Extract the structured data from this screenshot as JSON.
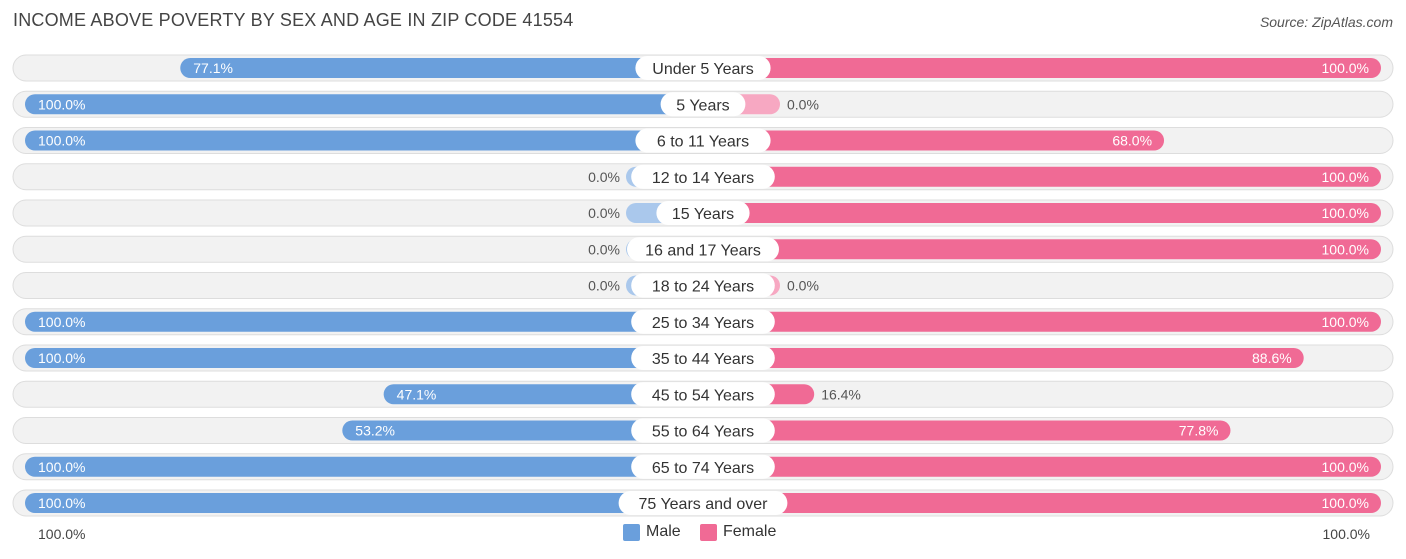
{
  "title": "INCOME ABOVE POVERTY BY SEX AND AGE IN ZIP CODE 41554",
  "source": "Source: ZipAtlas.com",
  "colors": {
    "male": "#6a9fdc",
    "male_light": "#aac8ec",
    "female": "#f06a95",
    "female_light": "#f7a8c2",
    "row_bg": "#f2f2f2",
    "row_border": "#dddddd"
  },
  "legend": {
    "male_label": "Male",
    "female_label": "Female"
  },
  "axis": {
    "left_label": "100.0%",
    "right_label": "100.0%"
  },
  "chart_data": {
    "type": "bar",
    "orientation": "diverging-horizontal",
    "title": "INCOME ABOVE POVERTY BY SEX AND AGE IN ZIP CODE 41554",
    "categories": [
      "Under 5 Years",
      "5 Years",
      "6 to 11 Years",
      "12 to 14 Years",
      "15 Years",
      "16 and 17 Years",
      "18 to 24 Years",
      "25 to 34 Years",
      "35 to 44 Years",
      "45 to 54 Years",
      "55 to 64 Years",
      "65 to 74 Years",
      "75 Years and over"
    ],
    "series": [
      {
        "name": "Male",
        "values": [
          77.1,
          100.0,
          100.0,
          0.0,
          0.0,
          0.0,
          0.0,
          100.0,
          100.0,
          47.1,
          53.2,
          100.0,
          100.0
        ],
        "labels": [
          "77.1%",
          "100.0%",
          "100.0%",
          "0.0%",
          "0.0%",
          "0.0%",
          "0.0%",
          "100.0%",
          "100.0%",
          "47.1%",
          "53.2%",
          "100.0%",
          "100.0%"
        ]
      },
      {
        "name": "Female",
        "values": [
          100.0,
          0.0,
          68.0,
          100.0,
          100.0,
          100.0,
          0.0,
          100.0,
          88.6,
          16.4,
          77.8,
          100.0,
          100.0
        ],
        "labels": [
          "100.0%",
          "0.0%",
          "68.0%",
          "100.0%",
          "100.0%",
          "100.0%",
          "0.0%",
          "100.0%",
          "88.6%",
          "16.4%",
          "77.8%",
          "100.0%",
          "100.0%"
        ]
      }
    ],
    "xlim": [
      0,
      100
    ],
    "legend_position": "bottom-center"
  }
}
